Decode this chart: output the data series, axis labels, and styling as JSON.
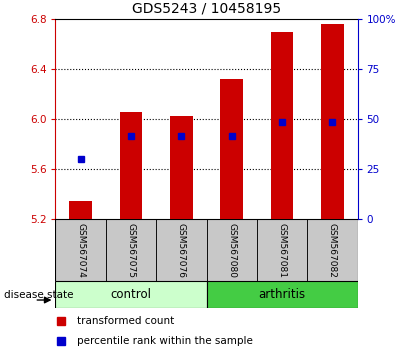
{
  "title": "GDS5243 / 10458195",
  "samples": [
    "GSM567074",
    "GSM567075",
    "GSM567076",
    "GSM567080",
    "GSM567081",
    "GSM567082"
  ],
  "bar_tops": [
    5.35,
    6.06,
    6.03,
    6.32,
    6.7,
    6.76
  ],
  "bar_bottom": 5.2,
  "percentile_values": [
    5.68,
    5.87,
    5.87,
    5.87,
    5.98,
    5.98
  ],
  "ylim_left": [
    5.2,
    6.8
  ],
  "ylim_right": [
    0,
    100
  ],
  "yticks_left": [
    5.2,
    5.6,
    6.0,
    6.4,
    6.8
  ],
  "yticks_right": [
    0,
    25,
    50,
    75,
    100
  ],
  "ytick_labels_right": [
    "0",
    "25",
    "50",
    "75",
    "100%"
  ],
  "bar_color": "#cc0000",
  "percentile_color": "#0000cc",
  "control_color": "#ccffcc",
  "arthritis_color": "#44cc44",
  "legend_items": [
    {
      "label": "transformed count",
      "color": "#cc0000"
    },
    {
      "label": "percentile rank within the sample",
      "color": "#0000cc"
    }
  ],
  "disease_state_label": "disease state"
}
